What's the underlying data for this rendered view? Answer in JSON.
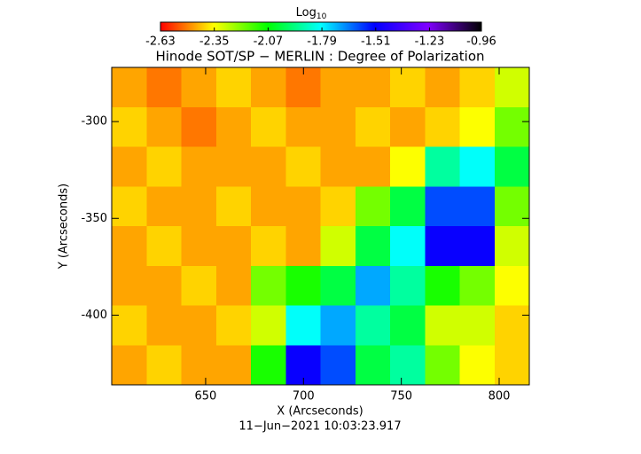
{
  "chart_data": {
    "type": "image",
    "title": "Hinode SOT/SP − MERLIN : Degree of Polarization",
    "xlabel": "X (Arcseconds)",
    "ylabel": "Y (Arcseconds)",
    "footer": "11−Jun−2021 10:03:23.917",
    "colorbar": {
      "label": "Log",
      "label_subscript": "10",
      "lim": [
        -2.63,
        -0.96
      ],
      "ticks": [
        -2.63,
        -2.35,
        -2.07,
        -1.79,
        -1.51,
        -1.23,
        -0.96
      ]
    },
    "colormap": [
      "#ff0000",
      "#ffff00",
      "#00ff00",
      "#00ffff",
      "#0000ff",
      "#8000ff",
      "#000000"
    ],
    "xlim": [
      602,
      815.4
    ],
    "ylim": [
      -436,
      -272
    ],
    "xticks": [
      650,
      700,
      750,
      800
    ],
    "yticks": [
      -400,
      -350,
      -300
    ],
    "values": [
      [
        -2.45,
        -2.5,
        -2.45,
        -2.4,
        -2.45,
        -2.5,
        -2.45,
        -2.45,
        -2.4,
        -2.45,
        -2.4,
        -2.3
      ],
      [
        -2.4,
        -2.45,
        -2.5,
        -2.45,
        -2.4,
        -2.45,
        -2.45,
        -2.4,
        -2.45,
        -2.4,
        -2.35,
        -2.2
      ],
      [
        -2.45,
        -2.4,
        -2.45,
        -2.45,
        -2.45,
        -2.4,
        -2.45,
        -2.45,
        -2.35,
        -1.9,
        -1.8,
        -2.0
      ],
      [
        -2.4,
        -2.45,
        -2.45,
        -2.4,
        -2.45,
        -2.45,
        -2.4,
        -2.2,
        -2.0,
        -1.6,
        -1.6,
        -2.2
      ],
      [
        -2.45,
        -2.4,
        -2.45,
        -2.45,
        -2.4,
        -2.45,
        -2.3,
        -2.0,
        -1.8,
        -1.5,
        -1.5,
        -2.3
      ],
      [
        -2.45,
        -2.45,
        -2.4,
        -2.45,
        -2.2,
        -2.1,
        -2.0,
        -1.7,
        -1.9,
        -2.1,
        -2.2,
        -2.35
      ],
      [
        -2.4,
        -2.45,
        -2.45,
        -2.4,
        -2.3,
        -1.8,
        -1.7,
        -1.9,
        -2.0,
        -2.3,
        -2.3,
        -2.4
      ],
      [
        -2.45,
        -2.4,
        -2.45,
        -2.45,
        -2.1,
        -1.5,
        -1.6,
        -2.0,
        -1.9,
        -2.2,
        -2.35,
        -2.4
      ]
    ]
  }
}
